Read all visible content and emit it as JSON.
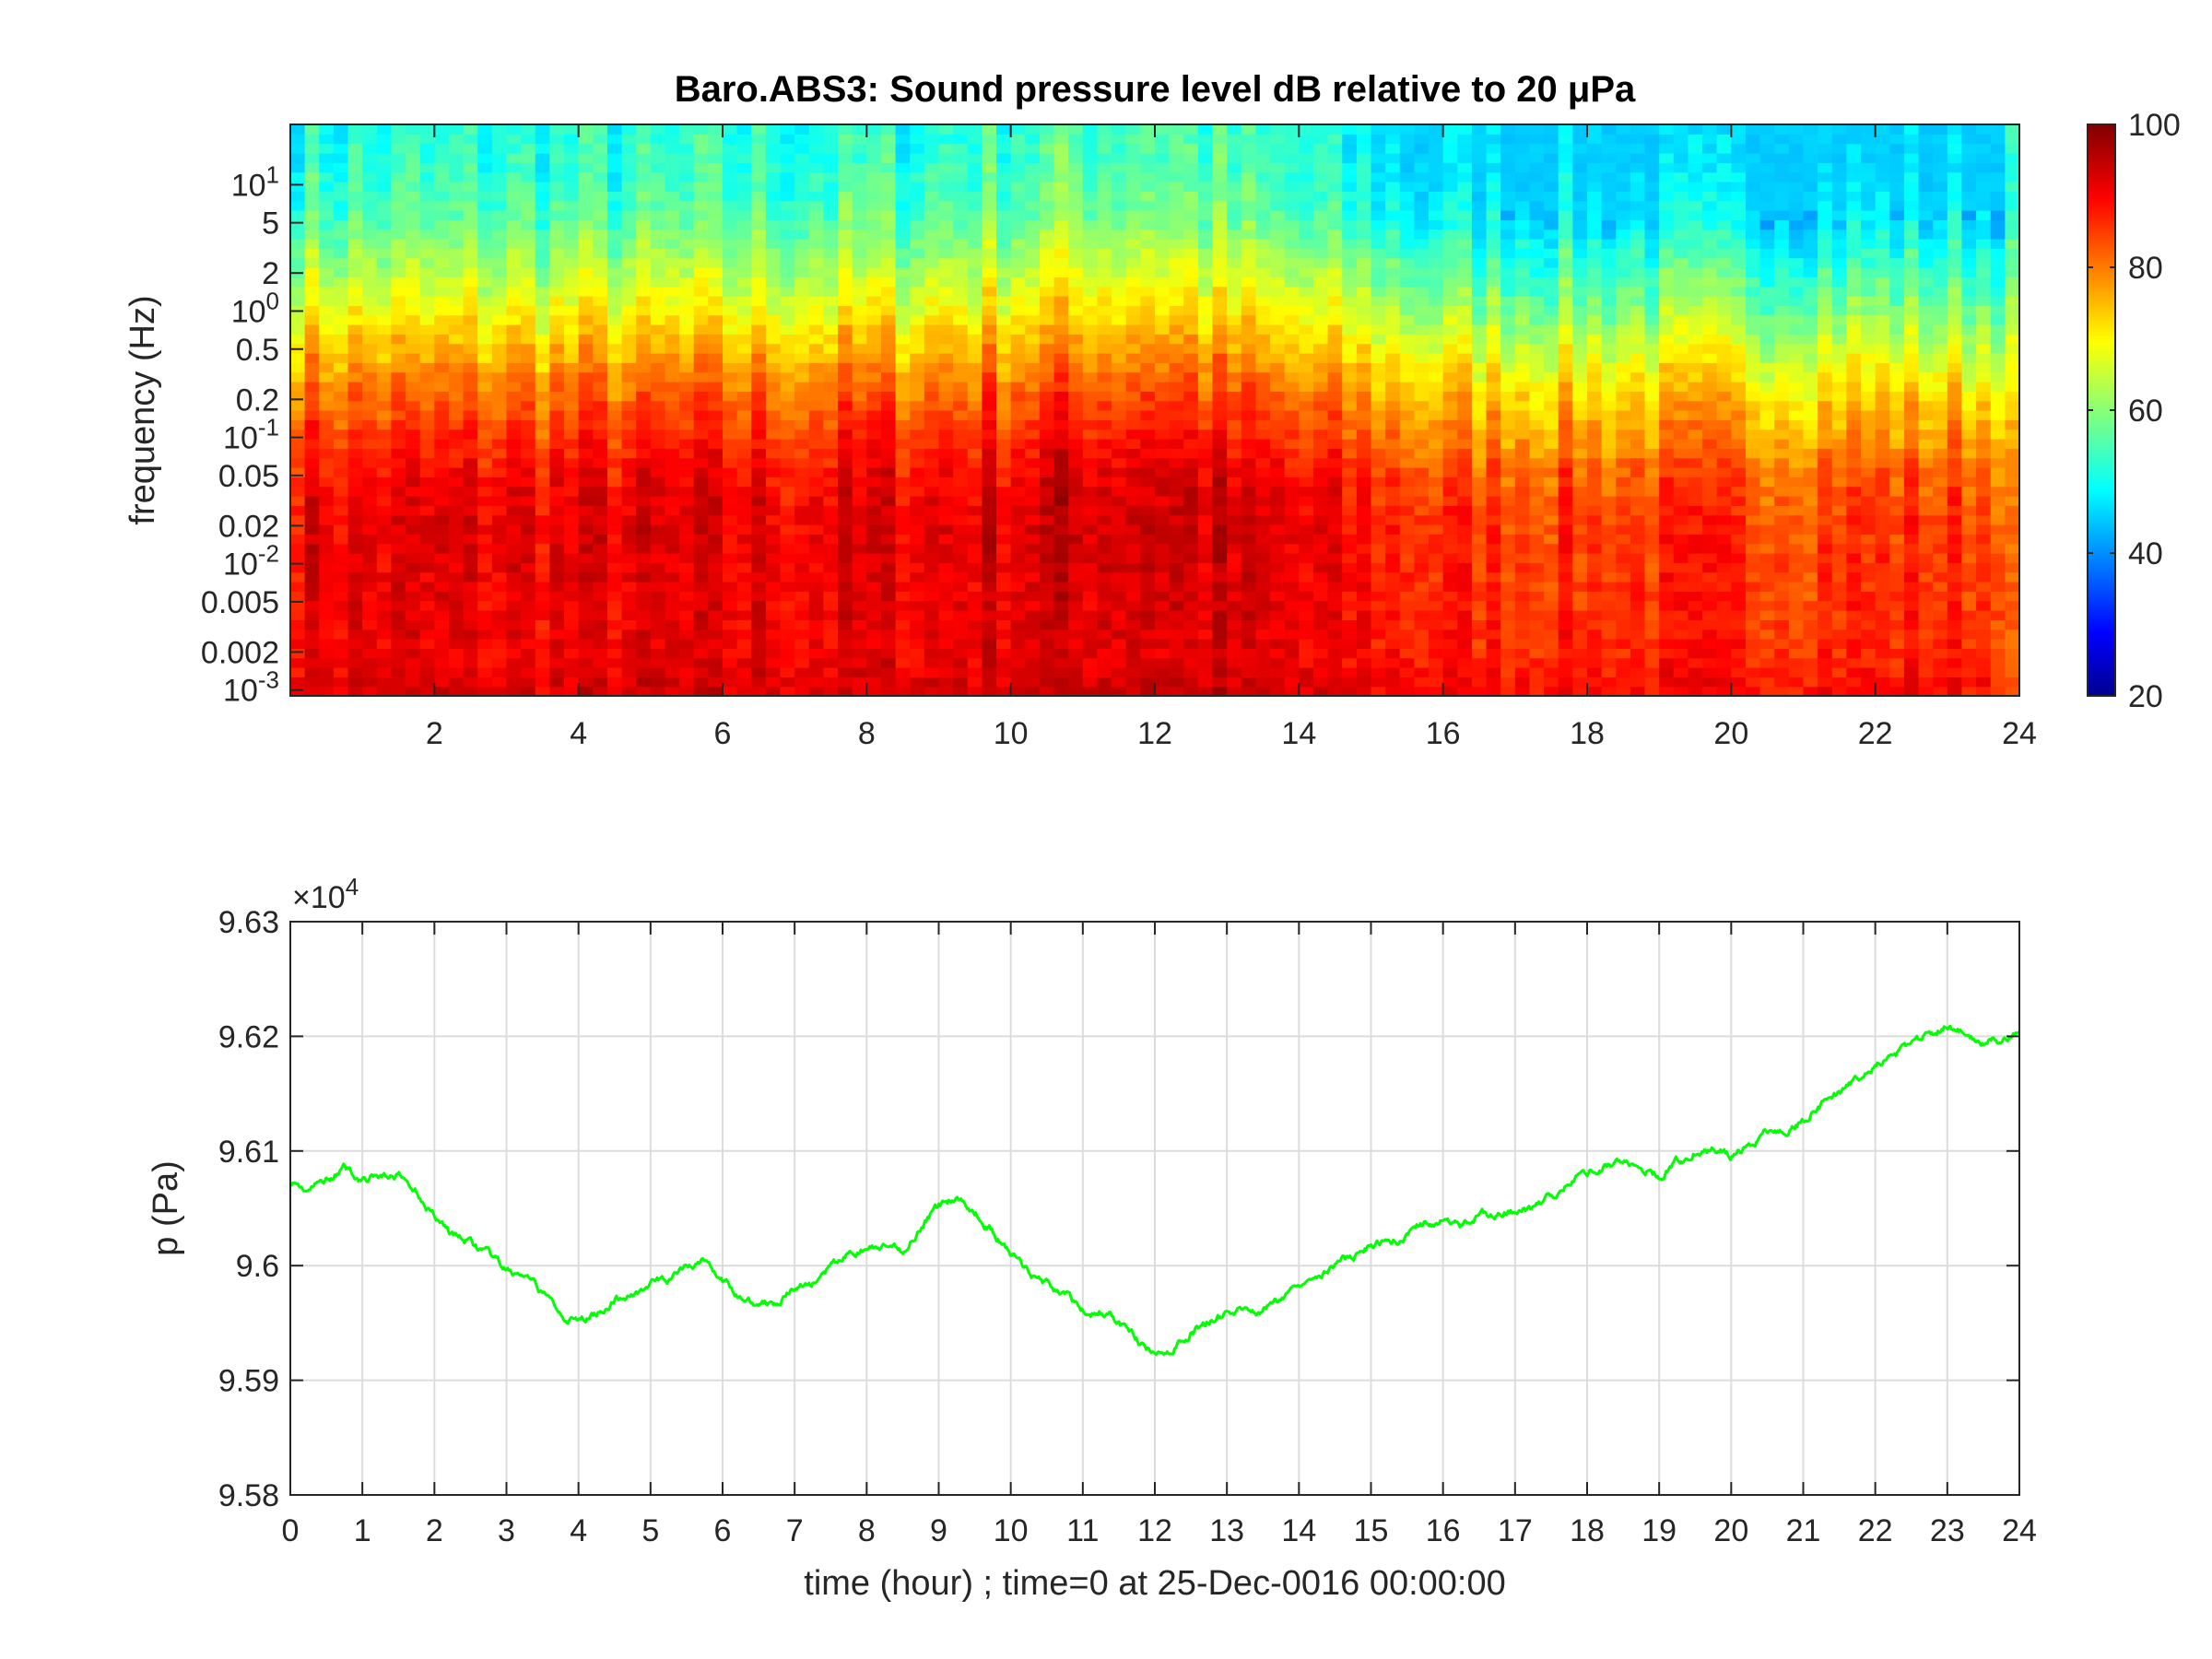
{
  "chart_data": [
    {
      "type": "heatmap",
      "title_text": "Baro.ABS3: Sound pressure level dB relative to 20 ",
      "title_unit": "μPa",
      "ylabel": "frequency (Hz)",
      "xlabel": "",
      "yscale": "log",
      "xlim": [
        0,
        24
      ],
      "ylim": [
        0.0009,
        30
      ],
      "x_ticks": [
        2,
        4,
        6,
        8,
        10,
        12,
        14,
        16,
        18,
        20,
        22,
        24
      ],
      "x_tick_labels": [
        "2",
        "4",
        "6",
        "8",
        "10",
        "12",
        "14",
        "16",
        "18",
        "20",
        "22",
        "24"
      ],
      "y_ticks": [
        {
          "value": 10,
          "base": "10",
          "exp": "1"
        },
        {
          "value": 5,
          "label": "5"
        },
        {
          "value": 2,
          "label": "2"
        },
        {
          "value": 1,
          "base": "10",
          "exp": "0"
        },
        {
          "value": 0.5,
          "label": "0.5"
        },
        {
          "value": 0.2,
          "label": "0.2"
        },
        {
          "value": 0.1,
          "base": "10",
          "exp": "-1"
        },
        {
          "value": 0.05,
          "label": "0.05"
        },
        {
          "value": 0.02,
          "label": "0.02"
        },
        {
          "value": 0.01,
          "base": "10",
          "exp": "-2"
        },
        {
          "value": 0.005,
          "label": "0.005"
        },
        {
          "value": 0.002,
          "label": "0.002"
        },
        {
          "value": 0.001,
          "base": "10",
          "exp": "-3"
        }
      ],
      "colorbar": {
        "colormap": "jet",
        "range": [
          20,
          100
        ],
        "ticks": [
          20,
          40,
          60,
          80,
          100
        ],
        "tick_labels": [
          "20",
          "40",
          "60",
          "80",
          "100"
        ],
        "unit": "dB"
      },
      "level_profile": {
        "description_freq_hz": [
          0.001,
          0.002,
          0.005,
          0.01,
          0.02,
          0.05,
          0.1,
          0.2,
          0.5,
          1,
          2,
          5,
          10,
          30
        ],
        "level_db": [
          92,
          90,
          90,
          90,
          90,
          88,
          84,
          80,
          73,
          67,
          62,
          55,
          52,
          50
        ]
      },
      "time_level_modulation": {
        "hours": [
          0,
          3,
          6,
          9,
          11,
          12,
          13,
          15,
          16,
          18,
          20,
          22,
          23.8,
          24
        ],
        "offset_db": [
          2,
          2,
          2,
          3,
          6,
          7,
          4,
          -2,
          -5,
          -6,
          -6,
          -6,
          -6,
          -40
        ]
      }
    },
    {
      "type": "line",
      "title": "",
      "xlabel": "time (hour) ; time=0 at 25-Dec-0016 00:00:00",
      "ylabel": "p (Pa)",
      "exponent_base": "×10",
      "exponent_power": "4",
      "xlim": [
        0,
        24
      ],
      "ylim": [
        95800,
        96300
      ],
      "grid": true,
      "x_ticks": [
        0,
        1,
        2,
        3,
        4,
        5,
        6,
        7,
        8,
        9,
        10,
        11,
        12,
        13,
        14,
        15,
        16,
        17,
        18,
        19,
        20,
        21,
        22,
        23,
        24
      ],
      "x_tick_labels": [
        "0",
        "1",
        "2",
        "3",
        "4",
        "5",
        "6",
        "7",
        "8",
        "9",
        "10",
        "11",
        "12",
        "13",
        "14",
        "15",
        "16",
        "17",
        "18",
        "19",
        "20",
        "21",
        "22",
        "23",
        "24"
      ],
      "y_ticks": [
        95800,
        95900,
        96000,
        96100,
        96200,
        96300
      ],
      "y_tick_labels": [
        "9.58",
        "9.59",
        "9.6",
        "9.61",
        "9.62",
        "9.63"
      ],
      "series": [
        {
          "color": "#00ff00",
          "x": [
            0,
            0.25,
            0.5,
            0.75,
            1,
            1.25,
            1.5,
            1.75,
            2,
            2.25,
            2.5,
            2.75,
            3,
            3.25,
            3.5,
            3.75,
            4,
            4.25,
            4.5,
            4.75,
            5,
            5.25,
            5.5,
            5.75,
            6,
            6.25,
            6.5,
            6.75,
            7,
            7.25,
            7.5,
            7.75,
            8,
            8.25,
            8.5,
            8.75,
            9,
            9.25,
            9.5,
            9.75,
            10,
            10.25,
            10.5,
            10.75,
            11,
            11.25,
            11.5,
            11.75,
            12,
            12.25,
            12.5,
            12.75,
            13,
            13.25,
            13.5,
            13.75,
            14,
            14.25,
            14.5,
            14.75,
            15,
            15.25,
            15.5,
            15.75,
            16,
            16.25,
            16.5,
            16.75,
            17,
            17.25,
            17.5,
            17.75,
            18,
            18.25,
            18.5,
            18.75,
            19,
            19.25,
            19.5,
            19.75,
            20,
            20.25,
            20.5,
            20.75,
            21,
            21.25,
            21.5,
            21.75,
            22,
            22.25,
            22.5,
            22.75,
            23,
            23.25,
            23.5,
            23.75,
            24
          ],
          "y": [
            96075,
            96065,
            96075,
            96085,
            96075,
            96078,
            96078,
            96065,
            96045,
            96028,
            96020,
            96008,
            95995,
            95990,
            95975,
            95960,
            95950,
            95958,
            95970,
            95975,
            95985,
            95988,
            95998,
            96005,
            95985,
            95972,
            95968,
            95970,
            95980,
            95985,
            95998,
            96010,
            96015,
            96015,
            96012,
            96035,
            96052,
            96060,
            96048,
            96030,
            96010,
            95995,
            95985,
            95975,
            95960,
            95960,
            95952,
            95935,
            95920,
            95928,
            95942,
            95952,
            95958,
            95960,
            95962,
            95970,
            95985,
            95995,
            96000,
            96008,
            96018,
            96022,
            96025,
            96038,
            96038,
            96035,
            96045,
            96045,
            96048,
            96050,
            96060,
            96075,
            96082,
            96088,
            96092,
            96085,
            96078,
            96090,
            96100,
            96100,
            96095,
            96103,
            96118,
            96120,
            96128,
            96142,
            96150,
            96165,
            96175,
            96183,
            96195,
            96203,
            96208,
            96203,
            96198,
            96195,
            96205
          ]
        }
      ]
    }
  ]
}
